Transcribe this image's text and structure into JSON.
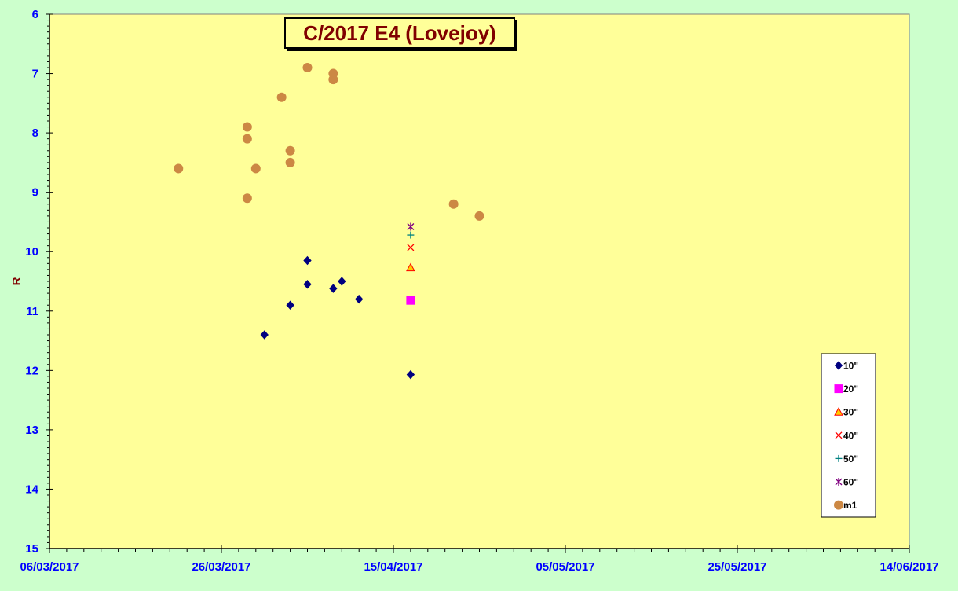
{
  "chart_data": {
    "type": "scatter",
    "title": "C/2017 E4 (Lovejoy)",
    "xlabel": "",
    "ylabel": "R",
    "x_axis": {
      "type": "date",
      "min": "2017-03-06",
      "max": "2017-06-14",
      "tick_labels": [
        "06/03/2017",
        "26/03/2017",
        "15/04/2017",
        "05/05/2017",
        "25/05/2017",
        "14/06/2017"
      ]
    },
    "y_axis": {
      "min": 6,
      "max": 15,
      "reversed": true,
      "tick_labels": [
        "6",
        "7",
        "8",
        "9",
        "10",
        "11",
        "12",
        "13",
        "14",
        "15"
      ]
    },
    "grid": false,
    "legend_position": "right",
    "colors": {
      "plot_background": "#ffff99",
      "figure_background": "#ccffcc",
      "tick_label": "#0000ff",
      "title_text": "#800000"
    },
    "series": [
      {
        "name": "10\"",
        "marker": "diamond",
        "color": "#000080",
        "points": [
          {
            "x": "2017-03-31",
            "y": 11.4
          },
          {
            "x": "2017-04-03",
            "y": 10.9
          },
          {
            "x": "2017-04-05",
            "y": 10.15
          },
          {
            "x": "2017-04-05",
            "y": 10.55
          },
          {
            "x": "2017-04-08",
            "y": 10.62
          },
          {
            "x": "2017-04-09",
            "y": 10.5
          },
          {
            "x": "2017-04-11",
            "y": 10.8
          },
          {
            "x": "2017-04-17",
            "y": 12.07
          }
        ]
      },
      {
        "name": "20\"",
        "marker": "square",
        "color": "#ff00ff",
        "points": [
          {
            "x": "2017-04-17",
            "y": 10.82
          }
        ]
      },
      {
        "name": "30\"",
        "marker": "triangle",
        "color": "#ff0000",
        "fill": "#ffcc00",
        "points": [
          {
            "x": "2017-04-17",
            "y": 10.27
          }
        ]
      },
      {
        "name": "40\"",
        "marker": "x",
        "color": "#ff0000",
        "points": [
          {
            "x": "2017-04-17",
            "y": 9.93
          }
        ]
      },
      {
        "name": "50\"",
        "marker": "plus",
        "color": "#008080",
        "points": [
          {
            "x": "2017-04-17",
            "y": 9.72
          }
        ]
      },
      {
        "name": "60\"",
        "marker": "star",
        "color": "#800080",
        "points": [
          {
            "x": "2017-04-17",
            "y": 9.58
          }
        ]
      },
      {
        "name": "m1",
        "marker": "circle",
        "color": "#cc8844",
        "points": [
          {
            "x": "2017-03-21",
            "y": 8.6
          },
          {
            "x": "2017-03-29",
            "y": 7.9
          },
          {
            "x": "2017-03-29",
            "y": 8.1
          },
          {
            "x": "2017-03-29",
            "y": 9.1
          },
          {
            "x": "2017-03-30",
            "y": 8.6
          },
          {
            "x": "2017-04-02",
            "y": 7.4
          },
          {
            "x": "2017-04-03",
            "y": 8.3
          },
          {
            "x": "2017-04-03",
            "y": 8.5
          },
          {
            "x": "2017-04-05",
            "y": 6.9
          },
          {
            "x": "2017-04-08",
            "y": 7.0
          },
          {
            "x": "2017-04-08",
            "y": 7.1
          },
          {
            "x": "2017-04-22",
            "y": 9.2
          },
          {
            "x": "2017-04-25",
            "y": 9.4
          }
        ]
      }
    ]
  }
}
